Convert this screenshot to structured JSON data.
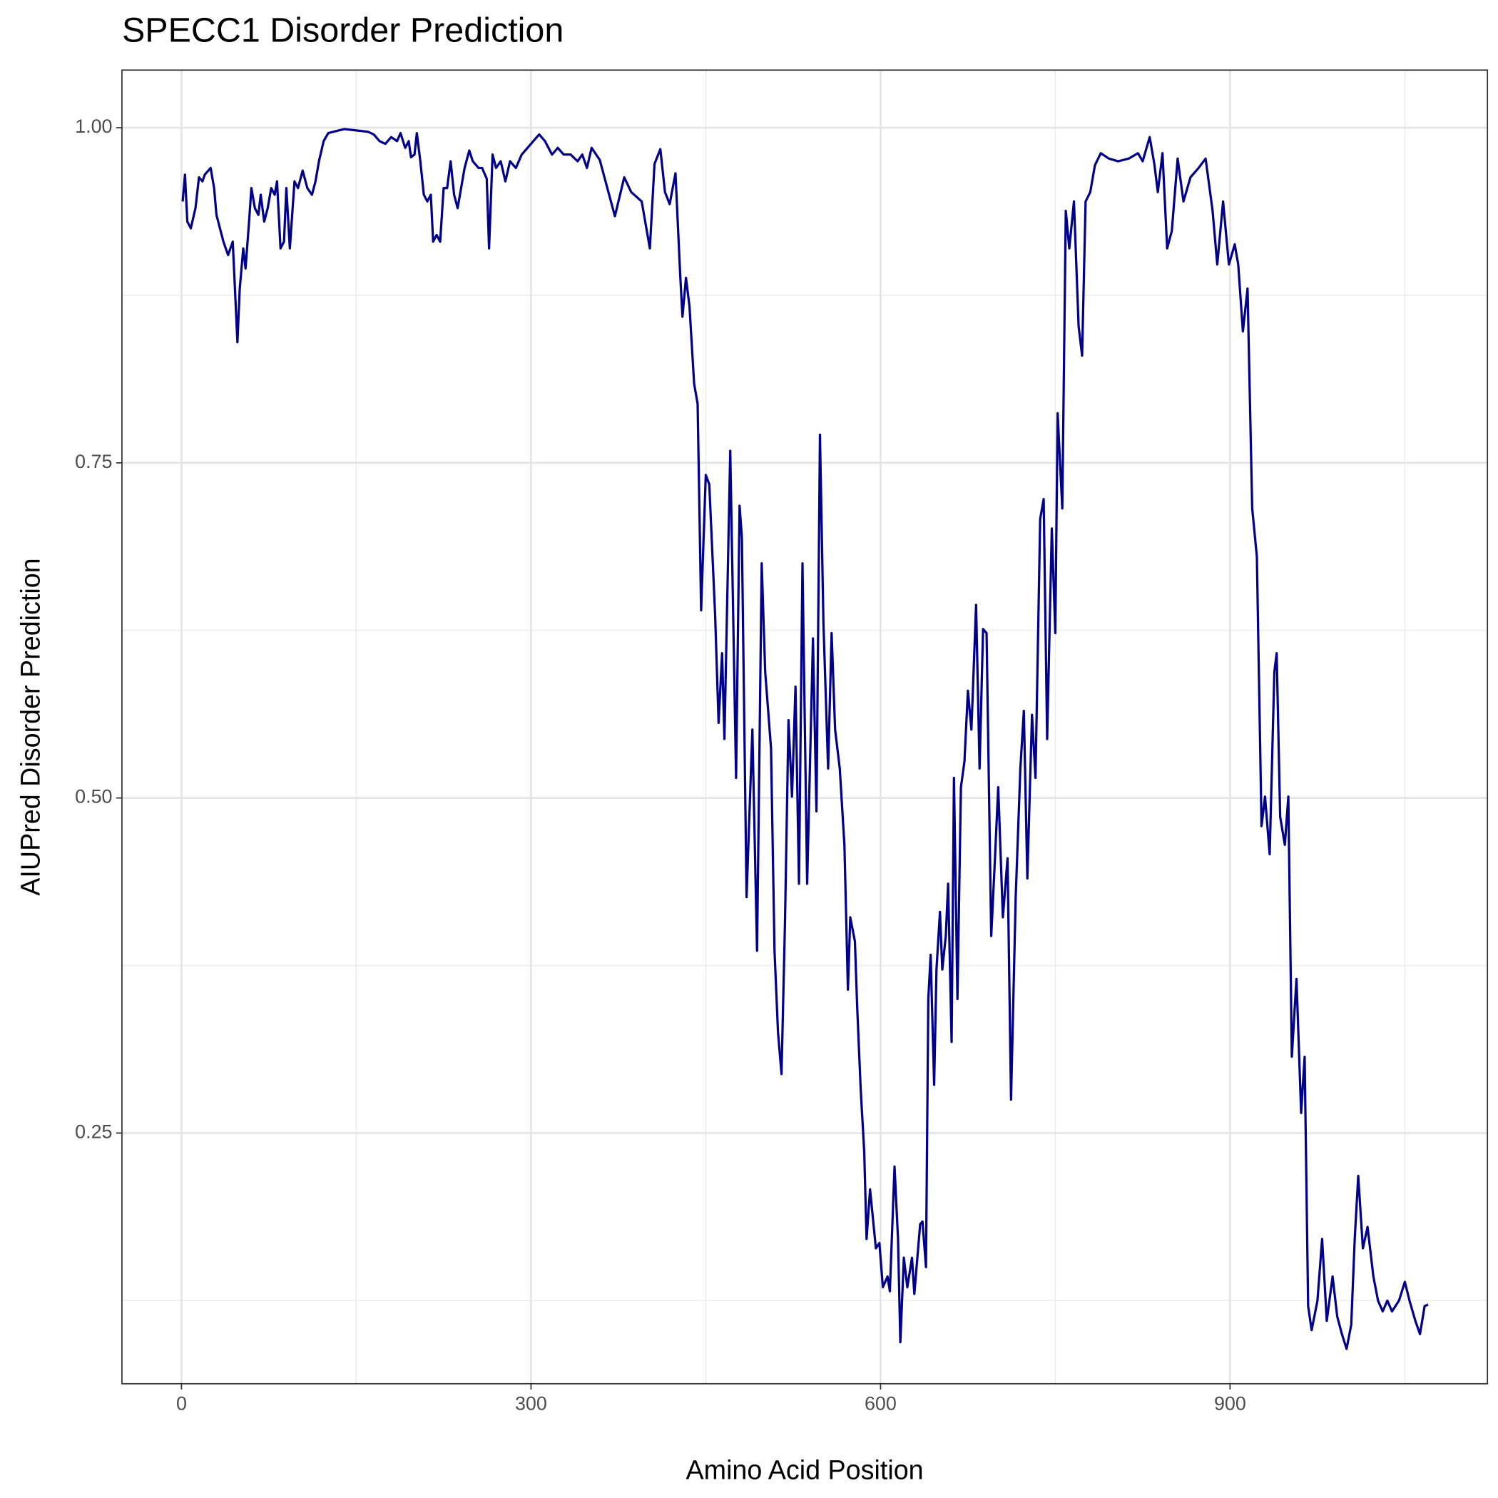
{
  "chart_data": {
    "type": "line",
    "title": "SPECC1 Disorder Prediction",
    "x_label": "Amino Acid Position",
    "y_label": "AIUPred Disorder Prediction",
    "color": "#00008b",
    "grid": true,
    "xlim": [
      -51.1,
      1120.9
    ],
    "ylim": [
      0.063,
      1.043
    ],
    "xticks": [
      0,
      300,
      600,
      900
    ],
    "yticks": [
      {
        "value": 0.25,
        "label": "0.25"
      },
      {
        "value": 0.5,
        "label": "0.50"
      },
      {
        "value": 0.75,
        "label": "0.75"
      },
      {
        "value": 1,
        "label": "1.00"
      }
    ],
    "x_minor_ticks": [
      150,
      450,
      750,
      1050
    ],
    "y_minor_ticks": [
      0.125,
      0.375,
      0.625,
      0.875
    ],
    "x": [
      1,
      3,
      5,
      8,
      12,
      15,
      18,
      20,
      25,
      28,
      30,
      33,
      36,
      40,
      44,
      48,
      50,
      53,
      55,
      58,
      60,
      63,
      66,
      68,
      71,
      74,
      77,
      80,
      82,
      85,
      88,
      90,
      93,
      97,
      100,
      104,
      108,
      112,
      115,
      118,
      122,
      126,
      135,
      140,
      150,
      160,
      165,
      170,
      175,
      180,
      185,
      188,
      192,
      195,
      197,
      200,
      202,
      205,
      208,
      211,
      214,
      216,
      219,
      222,
      225,
      228,
      231,
      234,
      237,
      240,
      243,
      247,
      250,
      255,
      258,
      262,
      264,
      267,
      270,
      274,
      278,
      282,
      287,
      292,
      297,
      302,
      307,
      312,
      318,
      323,
      328,
      334,
      340,
      344,
      348,
      352,
      359,
      372,
      380,
      386,
      395,
      402,
      406,
      411,
      415,
      419,
      424,
      428,
      430,
      433,
      436,
      440,
      443,
      446,
      450,
      453,
      458,
      461,
      464,
      466,
      471,
      476,
      479,
      481,
      485,
      490,
      494,
      498,
      501,
      506,
      509,
      512,
      515,
      518,
      521,
      524,
      527,
      530,
      533,
      537,
      542,
      545,
      548,
      551,
      555,
      558,
      561,
      565,
      569,
      572,
      574,
      578,
      580,
      583,
      586,
      588,
      591,
      596,
      599,
      602,
      606,
      608,
      612,
      615,
      617,
      620,
      623,
      627,
      629,
      634,
      636,
      639,
      641,
      643,
      646,
      648,
      651,
      653,
      656,
      658,
      661,
      663,
      666,
      669,
      672,
      675,
      678,
      682,
      685,
      688,
      691,
      695,
      698,
      701,
      705,
      709,
      712,
      716,
      720,
      723,
      726,
      730,
      733,
      737,
      740,
      743,
      747,
      750,
      752,
      756,
      759,
      762,
      766,
      770,
      773,
      776,
      780,
      784,
      789,
      796,
      804,
      813,
      821,
      825,
      831,
      835,
      838,
      842,
      846,
      850,
      855,
      860,
      866,
      873,
      879,
      885,
      889,
      894,
      899,
      904,
      907,
      911,
      915,
      919,
      923,
      927,
      930,
      934,
      938,
      940,
      943,
      947,
      950,
      953,
      957,
      961,
      964,
      967,
      970,
      975,
      979,
      983,
      988,
      992,
      996,
      1000,
      1004,
      1007,
      1010,
      1014,
      1018,
      1023,
      1027,
      1031,
      1035,
      1039,
      1045,
      1050,
      1054,
      1059,
      1063,
      1067,
      1070
    ],
    "values": [
      0.945,
      0.965,
      0.93,
      0.925,
      0.94,
      0.963,
      0.96,
      0.965,
      0.97,
      0.955,
      0.935,
      0.925,
      0.915,
      0.905,
      0.915,
      0.84,
      0.88,
      0.91,
      0.895,
      0.93,
      0.955,
      0.94,
      0.935,
      0.95,
      0.93,
      0.94,
      0.955,
      0.95,
      0.96,
      0.91,
      0.915,
      0.955,
      0.91,
      0.96,
      0.955,
      0.968,
      0.955,
      0.95,
      0.96,
      0.975,
      0.99,
      0.996,
      0.998,
      0.999,
      0.998,
      0.997,
      0.995,
      0.99,
      0.988,
      0.993,
      0.99,
      0.996,
      0.985,
      0.99,
      0.978,
      0.98,
      0.996,
      0.975,
      0.95,
      0.945,
      0.95,
      0.915,
      0.92,
      0.915,
      0.955,
      0.955,
      0.975,
      0.95,
      0.94,
      0.955,
      0.97,
      0.983,
      0.975,
      0.97,
      0.97,
      0.962,
      0.91,
      0.98,
      0.97,
      0.975,
      0.96,
      0.975,
      0.97,
      0.98,
      0.985,
      0.99,
      0.995,
      0.99,
      0.98,
      0.985,
      0.98,
      0.98,
      0.975,
      0.98,
      0.97,
      0.985,
      0.976,
      0.934,
      0.963,
      0.952,
      0.945,
      0.91,
      0.973,
      0.984,
      0.952,
      0.943,
      0.966,
      0.891,
      0.859,
      0.888,
      0.867,
      0.809,
      0.794,
      0.64,
      0.741,
      0.734,
      0.637,
      0.556,
      0.608,
      0.544,
      0.759,
      0.515,
      0.718,
      0.694,
      0.426,
      0.551,
      0.386,
      0.675,
      0.594,
      0.537,
      0.386,
      0.325,
      0.294,
      0.408,
      0.558,
      0.501,
      0.583,
      0.436,
      0.675,
      0.436,
      0.619,
      0.49,
      0.771,
      0.63,
      0.522,
      0.623,
      0.551,
      0.522,
      0.465,
      0.357,
      0.411,
      0.393,
      0.343,
      0.282,
      0.236,
      0.171,
      0.208,
      0.164,
      0.168,
      0.135,
      0.143,
      0.132,
      0.225,
      0.171,
      0.094,
      0.157,
      0.135,
      0.157,
      0.13,
      0.182,
      0.184,
      0.15,
      0.35,
      0.383,
      0.286,
      0.372,
      0.415,
      0.372,
      0.397,
      0.436,
      0.318,
      0.515,
      0.35,
      0.508,
      0.527,
      0.58,
      0.551,
      0.644,
      0.522,
      0.626,
      0.623,
      0.397,
      0.451,
      0.508,
      0.411,
      0.455,
      0.275,
      0.426,
      0.522,
      0.565,
      0.44,
      0.562,
      0.515,
      0.708,
      0.723,
      0.544,
      0.701,
      0.623,
      0.787,
      0.716,
      0.938,
      0.91,
      0.945,
      0.852,
      0.83,
      0.945,
      0.952,
      0.972,
      0.981,
      0.977,
      0.975,
      0.977,
      0.981,
      0.975,
      0.993,
      0.973,
      0.952,
      0.981,
      0.91,
      0.923,
      0.977,
      0.945,
      0.963,
      0.97,
      0.977,
      0.938,
      0.898,
      0.945,
      0.898,
      0.913,
      0.898,
      0.848,
      0.88,
      0.716,
      0.68,
      0.479,
      0.501,
      0.458,
      0.594,
      0.608,
      0.486,
      0.465,
      0.501,
      0.307,
      0.365,
      0.265,
      0.307,
      0.121,
      0.103,
      0.125,
      0.171,
      0.11,
      0.143,
      0.113,
      0.1,
      0.089,
      0.107,
      0.171,
      0.218,
      0.164,
      0.18,
      0.143,
      0.125,
      0.117,
      0.125,
      0.117,
      0.125,
      0.139,
      0.125,
      0.11,
      0.1,
      0.121,
      0.122
    ]
  }
}
